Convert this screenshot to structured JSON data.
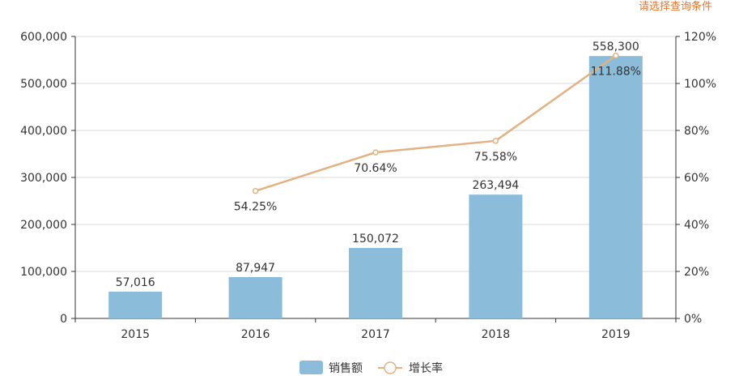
{
  "hint_text": "请选择查询条件",
  "colors": {
    "bar": "#8bbcda",
    "line": "#e3b283",
    "hint": "#e8742a",
    "axis": "#333333",
    "grid": "#d9d9d9"
  },
  "chart_data": {
    "type": "bar",
    "categories": [
      "2015",
      "2016",
      "2017",
      "2018",
      "2019"
    ],
    "series": [
      {
        "name": "销售额",
        "type": "bar",
        "axis": "left",
        "values": [
          57016,
          87947,
          150072,
          263494,
          558300
        ],
        "labels": [
          "57,016",
          "87,947",
          "150,072",
          "263,494",
          "558,300"
        ]
      },
      {
        "name": "增长率",
        "type": "line",
        "axis": "right",
        "values": [
          null,
          54.25,
          70.64,
          75.58,
          111.88
        ],
        "labels": [
          null,
          "54.25%",
          "70.64%",
          "75.58%",
          "111.88%"
        ]
      }
    ],
    "y_left": {
      "ylim": [
        0,
        600000
      ],
      "ticks": [
        "0",
        "100,000",
        "200,000",
        "300,000",
        "400,000",
        "500,000",
        "600,000"
      ]
    },
    "y_right": {
      "ylim": [
        0,
        120
      ],
      "ticks": [
        "0%",
        "20%",
        "40%",
        "60%",
        "80%",
        "100%",
        "120%"
      ]
    },
    "grid": true,
    "legend": "bottom-center"
  }
}
